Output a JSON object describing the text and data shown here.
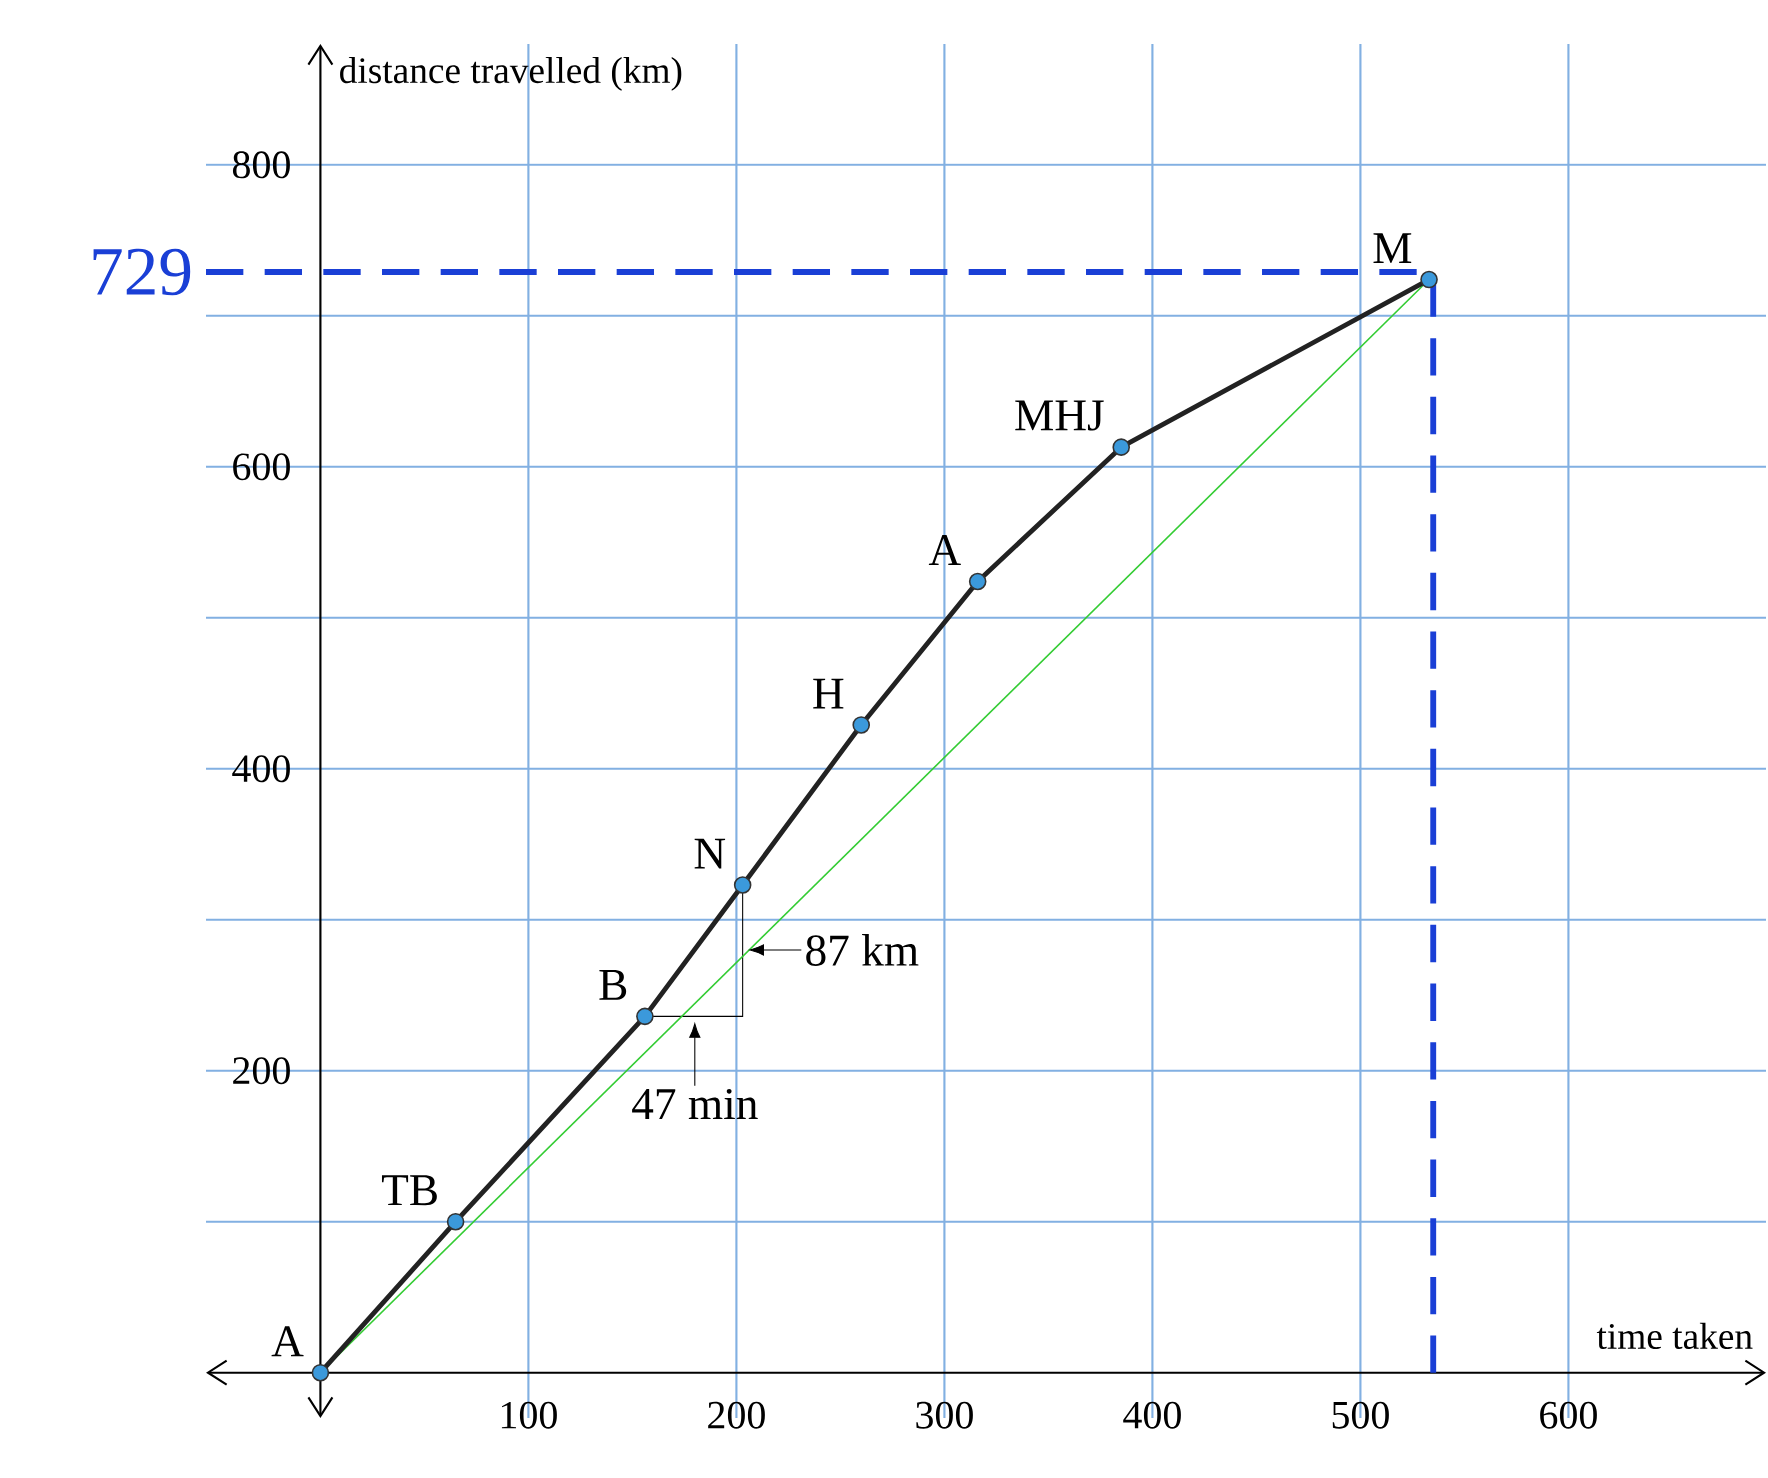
{
  "chart_data": {
    "type": "line",
    "xlabel": "time taken",
    "ylabel": "distance travelled (km)",
    "xlim": [
      -55,
      695
    ],
    "ylim": [
      -30,
      880
    ],
    "xticks": [
      100,
      200,
      300,
      400,
      500,
      600
    ],
    "yticks": [
      {
        "value": 100,
        "label": null
      },
      200,
      {
        "value": 300,
        "label": null
      },
      400,
      {
        "value": 500,
        "label": null
      },
      600,
      {
        "value": 700,
        "label": null
      },
      800
    ],
    "grid": true,
    "marker": "circle",
    "line_style": "solid",
    "series": [
      {
        "color": "#222222",
        "x": [
          0,
          65,
          156,
          203,
          260,
          316,
          385,
          533
        ],
        "values": [
          0,
          100,
          236,
          323,
          429,
          524,
          613,
          724
        ]
      },
      {
        "color": "#33cc33",
        "marker": "none",
        "x": [
          0,
          533
        ],
        "values": [
          0,
          724
        ]
      }
    ],
    "ref_lines": [
      {
        "axis": "y",
        "value": 729,
        "label": "729",
        "color": "#1a3fd6",
        "line_style": "dashed"
      },
      {
        "axis": "x",
        "value": 535,
        "color": "#1a3fd6",
        "line_style": "dashed"
      }
    ],
    "annotations": [
      {
        "text": "A",
        "x": 0,
        "y": 0
      },
      {
        "text": "TB",
        "x": 65,
        "y": 100
      },
      {
        "text": "B",
        "x": 156,
        "y": 236
      },
      {
        "text": "N",
        "x": 203,
        "y": 323
      },
      {
        "text": "H",
        "x": 260,
        "y": 429
      },
      {
        "text": "A",
        "x": 316,
        "y": 524
      },
      {
        "text": "MHJ",
        "x": 385,
        "y": 613
      },
      {
        "text": "M",
        "x": 533,
        "y": 724
      },
      {
        "text": "87 km",
        "x": 203,
        "y": 280
      },
      {
        "text": "47 min",
        "x": 180,
        "y": 236
      }
    ]
  }
}
